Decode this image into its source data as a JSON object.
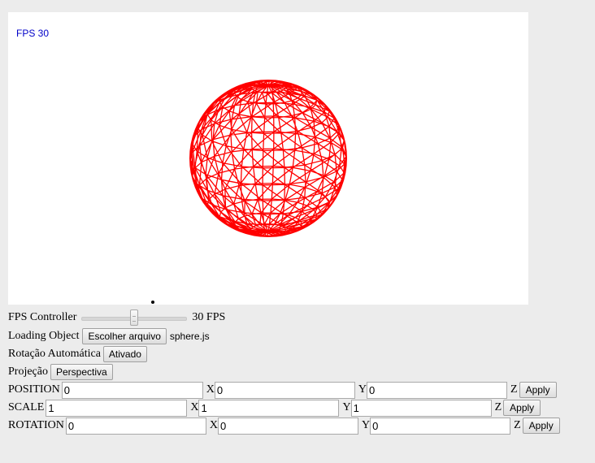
{
  "viewport": {
    "fps_text": "FPS 30",
    "wireframe_color": "#ff0000",
    "background_color": "#ffffff"
  },
  "controls": {
    "fps_controller": {
      "label": "FPS Controller",
      "value": 30,
      "value_text": "30 FPS",
      "min": 0,
      "max": 60
    },
    "loading_object": {
      "label": "Loading Object",
      "button": "Escolher arquivo",
      "file_name": "sphere.js"
    },
    "auto_rotation": {
      "label": "Rotação Automática",
      "button": "Ativado"
    },
    "projection": {
      "label": "Projeção",
      "button": "Perspectiva"
    },
    "position": {
      "label": "POSITION",
      "x": "0",
      "y": "0",
      "z": "0",
      "x_label": "X",
      "y_label": "Y",
      "z_label": "Z",
      "apply": "Apply"
    },
    "scale": {
      "label": "SCALE",
      "x": "1",
      "y": "1",
      "z": "1",
      "x_label": "X",
      "y_label": "Y",
      "z_label": "Z",
      "apply": "Apply"
    },
    "rotation": {
      "label": "ROTATION",
      "x": "0",
      "y": "0",
      "z": "0",
      "x_label": "X",
      "y_label": "Y",
      "z_label": "Z",
      "apply": "Apply"
    }
  }
}
